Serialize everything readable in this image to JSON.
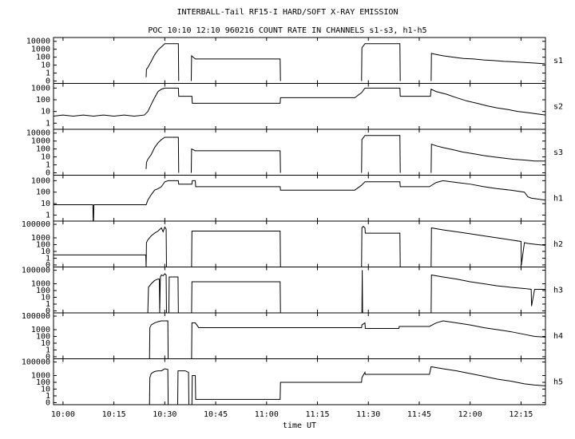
{
  "header": {
    "title": "INTERBALL-Tail RF15-I HARD/SOFT X-RAY EMISSION",
    "subtitle": "POC 10:10 12:10 960216  COUNT RATE IN CHANNELS s1-s3, h1-h5"
  },
  "chart_data": [
    {
      "type": "line",
      "label": "s1",
      "log": true,
      "color": "#000000",
      "xlim": [
        -2.8,
        142.2
      ],
      "ylim": [
        0.05,
        30000
      ],
      "yticks": [
        10000,
        1000,
        100,
        10,
        1,
        {
          "value": 0.1,
          "label": "0"
        }
      ],
      "x": [
        24.5,
        24.6,
        25,
        26,
        27,
        28,
        29,
        30,
        34,
        34.1,
        36,
        37.8,
        37.9,
        39,
        64,
        64.1,
        76,
        88,
        88.1,
        89,
        99.3,
        99.4,
        104,
        108.5,
        108.6,
        110,
        112,
        115,
        118,
        121,
        124,
        127,
        130,
        133,
        136,
        139,
        142
      ],
      "values": [
        0.3,
        3,
        5,
        30,
        200,
        800,
        2000,
        5000,
        5000,
        0.1,
        null,
        0.1,
        150,
        60,
        60,
        0.1,
        null,
        0.1,
        1500,
        5000,
        5000,
        0.1,
        null,
        0.1,
        300,
        220,
        150,
        100,
        70,
        60,
        45,
        38,
        30,
        26,
        22,
        18,
        15
      ]
    },
    {
      "type": "line",
      "label": "s2",
      "log": true,
      "color": "#000000",
      "xlim": [
        -2.8,
        142.2
      ],
      "ylim": [
        0.3,
        2500
      ],
      "yticks": [
        1000,
        100,
        10,
        1
      ],
      "x": [
        -2.8,
        0,
        3,
        6,
        9,
        12,
        15,
        18,
        21,
        24,
        25,
        26,
        27,
        28,
        29,
        30,
        34,
        34.1,
        38,
        38.1,
        64,
        64.1,
        86,
        88,
        89,
        99.3,
        99.4,
        108.3,
        108.5,
        110,
        113,
        116,
        119,
        122,
        125,
        128,
        131,
        134,
        137,
        140,
        142.2
      ],
      "values": [
        4,
        5,
        4,
        5,
        4,
        5,
        4,
        5,
        4,
        5,
        10,
        40,
        150,
        500,
        800,
        1000,
        1000,
        200,
        200,
        50,
        50,
        150,
        150,
        400,
        1000,
        1000,
        200,
        200,
        800,
        500,
        300,
        150,
        80,
        50,
        30,
        20,
        15,
        10,
        8,
        6,
        5
      ]
    },
    {
      "type": "line",
      "label": "s3",
      "log": true,
      "color": "#000000",
      "xlim": [
        -2.8,
        142.2
      ],
      "ylim": [
        0.05,
        30000
      ],
      "yticks": [
        10000,
        1000,
        100,
        10,
        1,
        {
          "value": 0.1,
          "label": "0"
        }
      ],
      "x": [
        24.5,
        24.6,
        25,
        26,
        27,
        28,
        29,
        30,
        34,
        34.1,
        36,
        37.8,
        37.9,
        39,
        64,
        64.1,
        76,
        88,
        88.1,
        89,
        99.3,
        99.4,
        104,
        108.5,
        108.6,
        110,
        112,
        115,
        118,
        121,
        124,
        127,
        130,
        133,
        136,
        139,
        142.2
      ],
      "values": [
        0.3,
        2,
        5,
        20,
        150,
        600,
        1500,
        3000,
        3000,
        0.1,
        null,
        0.1,
        100,
        60,
        60,
        0.1,
        null,
        0.1,
        1500,
        5000,
        5000,
        0.1,
        null,
        0.1,
        400,
        250,
        150,
        80,
        40,
        25,
        15,
        10,
        7,
        5,
        4,
        3,
        3
      ]
    },
    {
      "type": "line",
      "label": "h1",
      "log": true,
      "color": "#000000",
      "xlim": [
        -2.8,
        142.2
      ],
      "ylim": [
        0.3,
        3000
      ],
      "yticks": [
        1000,
        100,
        10,
        1
      ],
      "x": [
        -2.8,
        3,
        8.8,
        8.9,
        9,
        9.1,
        15,
        21,
        24.5,
        25,
        26,
        27,
        28,
        29,
        30,
        31,
        34,
        34.1,
        38,
        38.1,
        39,
        39.1,
        64,
        64.1,
        86,
        88,
        89,
        99.3,
        99.4,
        108,
        110,
        112,
        116,
        120,
        124,
        128,
        132,
        136,
        137,
        138,
        140,
        142.2
      ],
      "values": [
        8,
        8,
        8,
        0.3,
        0.3,
        8,
        8,
        8,
        8,
        20,
        60,
        150,
        200,
        300,
        800,
        1000,
        1000,
        500,
        500,
        1000,
        1000,
        300,
        300,
        150,
        150,
        400,
        800,
        800,
        300,
        300,
        700,
        1000,
        700,
        500,
        300,
        200,
        150,
        100,
        40,
        30,
        25,
        20
      ]
    },
    {
      "type": "line",
      "label": "h2",
      "log": true,
      "color": "#000000",
      "xlim": [
        -2.8,
        142.2
      ],
      "ylim": [
        0.05,
        300000
      ],
      "yticks": [
        100000,
        1000,
        100,
        10,
        1,
        {
          "value": 0.1,
          "label": "0"
        }
      ],
      "x": [
        -2.8,
        24.4,
        24.5,
        24.6,
        25,
        26,
        27,
        28,
        29,
        29.5,
        30,
        30.4,
        30.5,
        34,
        37.9,
        38,
        64,
        64.1,
        76,
        88,
        88.1,
        88.5,
        89,
        89.1,
        99.3,
        99.4,
        104,
        108.5,
        108.6,
        112,
        116,
        120,
        124,
        128,
        132,
        135,
        135.1,
        136,
        137,
        140,
        142.2
      ],
      "values": [
        3,
        3,
        0.05,
        200,
        500,
        2000,
        5000,
        10000,
        30000,
        8000,
        40000,
        20000,
        0.05,
        null,
        0.05,
        10000,
        10000,
        0.05,
        null,
        0.05,
        30000,
        50000,
        30000,
        5000,
        5000,
        0.05,
        null,
        0.05,
        30000,
        15000,
        8000,
        4000,
        2000,
        1000,
        500,
        300,
        0.1,
        200,
        150,
        100,
        80
      ]
    },
    {
      "type": "line",
      "label": "h3",
      "log": true,
      "color": "#000000",
      "xlim": [
        -2.8,
        142.2
      ],
      "ylim": [
        0.05,
        300000
      ],
      "yticks": [
        100000,
        1000,
        100,
        10,
        1,
        {
          "value": 0.1,
          "label": "0"
        }
      ],
      "x": [
        25,
        25.2,
        26,
        27,
        28,
        28.4,
        28.5,
        28.7,
        29,
        29.5,
        30,
        30.4,
        30.5,
        31,
        31.2,
        31.3,
        33.9,
        34,
        36,
        37.9,
        38,
        64,
        64.1,
        76,
        88.1,
        88.2,
        88.3,
        95,
        108.5,
        108.6,
        112,
        116,
        120,
        124,
        128,
        132,
        136,
        138,
        138.1,
        139,
        142.2
      ],
      "values": [
        0.05,
        300,
        1000,
        3000,
        5000,
        5000,
        0.05,
        10000,
        20000,
        15000,
        30000,
        20000,
        0.05,
        null,
        0.05,
        10000,
        10000,
        0.05,
        null,
        0.05,
        2000,
        2000,
        0.05,
        null,
        0.05,
        100000,
        0.05,
        null,
        0.05,
        20000,
        10000,
        5000,
        2000,
        1000,
        500,
        300,
        200,
        150,
        0.5,
        150,
        150
      ]
    },
    {
      "type": "line",
      "label": "h4",
      "log": true,
      "color": "#000000",
      "xlim": [
        -2.8,
        142.2
      ],
      "ylim": [
        0.05,
        300000
      ],
      "yticks": [
        100000,
        1000,
        100,
        10,
        1,
        {
          "value": 0.1,
          "label": "0"
        }
      ],
      "x": [
        25.5,
        25.6,
        26,
        27,
        28,
        29,
        30,
        30.9,
        31,
        34,
        37.9,
        38,
        39,
        40,
        64,
        88,
        88.1,
        89,
        89.1,
        99,
        99.1,
        108,
        110,
        112,
        116,
        120,
        124,
        128,
        132,
        136,
        139,
        142.2
      ],
      "values": [
        0.05,
        2000,
        5000,
        10000,
        15000,
        20000,
        20000,
        20000,
        0.05,
        null,
        0.05,
        10000,
        10000,
        2000,
        2000,
        2000,
        5000,
        10000,
        1500,
        1500,
        3000,
        3000,
        10000,
        20000,
        10000,
        5000,
        2000,
        1000,
        500,
        200,
        100,
        80
      ]
    },
    {
      "type": "line",
      "label": "h5",
      "log": true,
      "color": "#000000",
      "xlim": [
        -2.8,
        142.2
      ],
      "ylim": [
        0.05,
        300000
      ],
      "yticks": [
        100000,
        1000,
        100,
        10,
        1,
        {
          "value": 0.1,
          "label": "0"
        }
      ],
      "xticks": [
        {
          "value": 0,
          "label": "10:00"
        },
        {
          "value": 15,
          "label": "10:15"
        },
        {
          "value": 30,
          "label": "10:30"
        },
        {
          "value": 45,
          "label": "10:45"
        },
        {
          "value": 60,
          "label": "11:00"
        },
        {
          "value": 75,
          "label": "11:15"
        },
        {
          "value": 90,
          "label": "11:30"
        },
        {
          "value": 105,
          "label": "11:45"
        },
        {
          "value": 120,
          "label": "12:00"
        },
        {
          "value": 135,
          "label": "12:15"
        }
      ],
      "xlabel": "time UT",
      "x": [
        25.5,
        25.6,
        26,
        27,
        28,
        29,
        30,
        30.9,
        31,
        32,
        33.8,
        33.9,
        36,
        37,
        37.1,
        38,
        38.1,
        39,
        39.1,
        64,
        64.1,
        88,
        88.1,
        89,
        89.1,
        108,
        108.5,
        112,
        116,
        120,
        124,
        128,
        132,
        136,
        139,
        142.2
      ],
      "values": [
        0.05,
        500,
        2000,
        4000,
        5000,
        5000,
        10000,
        8000,
        0.05,
        null,
        0.05,
        5000,
        5000,
        3000,
        0.05,
        0.05,
        1000,
        1000,
        0.3,
        0.3,
        100,
        100,
        500,
        3000,
        1500,
        1500,
        20000,
        10000,
        5000,
        2000,
        800,
        300,
        150,
        60,
        40,
        30
      ]
    }
  ]
}
